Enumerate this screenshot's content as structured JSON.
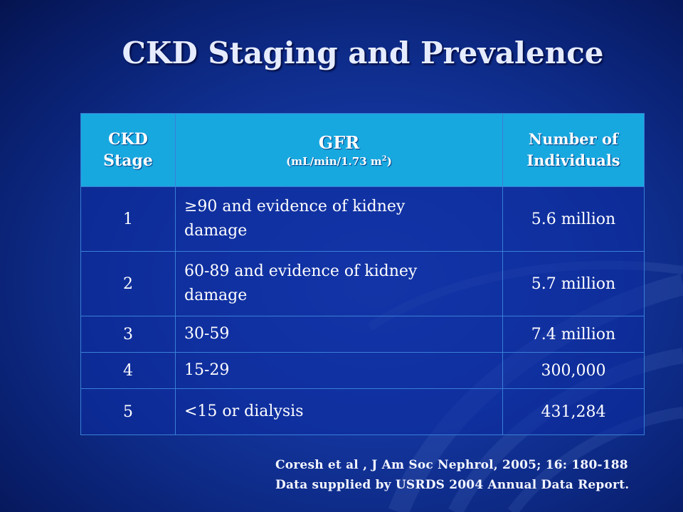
{
  "slide": {
    "title": "CKD Staging and Prevalence"
  },
  "table": {
    "headers": {
      "stage_line1": "CKD",
      "stage_line2": "Stage",
      "gfr_main": "GFR",
      "gfr_unit_prefix": "(mL/min/1.73 m",
      "gfr_unit_sup": "2",
      "gfr_unit_suffix": ")",
      "num_line1": "Number of",
      "num_line2": "Individuals"
    },
    "rows": [
      {
        "stage": "1",
        "gfr_line1": "≥90 and evidence of kidney",
        "gfr_line2": "damage",
        "number": "5.6 million"
      },
      {
        "stage": "2",
        "gfr_line1": "60-89 and evidence of kidney",
        "gfr_line2": "damage",
        "number": "5.7 million"
      },
      {
        "stage": "3",
        "gfr_line1": "30-59",
        "gfr_line2": "",
        "number": "7.4 million"
      },
      {
        "stage": "4",
        "gfr_line1": "15-29",
        "gfr_line2": "",
        "number": "300,000"
      },
      {
        "stage": "5",
        "gfr_line1": "<15 or dialysis",
        "gfr_line2": "",
        "number": "431,284"
      }
    ]
  },
  "citation": {
    "line1": "Coresh et al , J Am Soc Nephrol, 2005; 16: 180-188",
    "line2": "Data supplied by USRDS 2004 Annual Data Report."
  }
}
